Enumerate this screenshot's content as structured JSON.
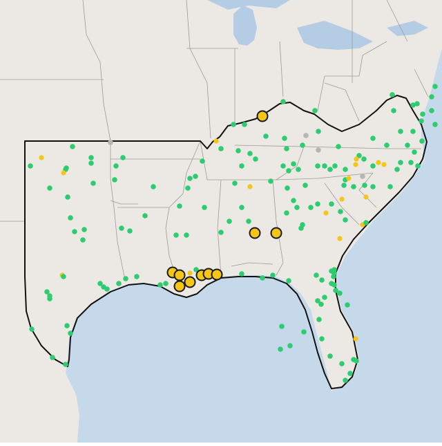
{
  "map": {
    "colors": {
      "land": "#ece9e5",
      "water": "#c6d9ea",
      "lake": "#b4cde4",
      "state_border": "#9a9a9a",
      "region_outline": "#111111",
      "marker_green": "#2ecc71",
      "marker_yellow": "#f5c518",
      "marker_gray": "#b5b5b5",
      "large_marker_fill": "#f5c518",
      "large_marker_stroke": "#1a1a1a"
    },
    "legend": "none",
    "labels": []
  }
}
